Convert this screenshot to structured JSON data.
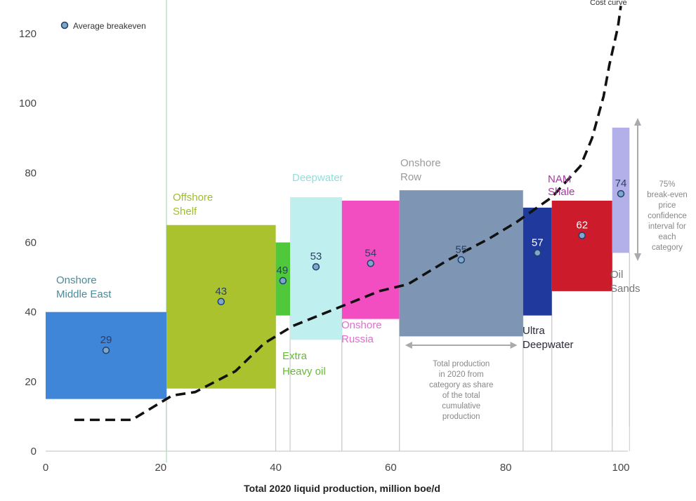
{
  "chart_data": {
    "type": "bar",
    "xlabel": "Total 2020 liquid production, million boe/d",
    "ylabel": "",
    "xlim": [
      0,
      100
    ],
    "ylim": [
      0,
      120
    ],
    "x_ticks": [
      "0",
      "20",
      "40",
      "60",
      "80",
      "100"
    ],
    "y_ticks": [
      "0",
      "20",
      "40",
      "60",
      "80",
      "100",
      "120"
    ],
    "legend": {
      "label": "Average breakeven",
      "position": "top-left"
    },
    "series": [
      {
        "category": "Onshore Middle East",
        "label_lines": [
          "Onshore",
          "Middle East"
        ],
        "x_start": 0,
        "x_end": 21,
        "low": 15,
        "high": 40,
        "average": 29,
        "color": "#3f85d8",
        "label_color": "#4b8a9a"
      },
      {
        "category": "Offshore Shelf",
        "label_lines": [
          "Offshore",
          "Shelf"
        ],
        "x_start": 21,
        "x_end": 40,
        "low": 18,
        "high": 65,
        "average": 43,
        "color": "#a9c22e",
        "label_color": "#9fbf2a"
      },
      {
        "category": "Extra Heavy oil",
        "label_lines": [
          "Extra",
          "Heavy oil"
        ],
        "x_start": 40,
        "x_end": 42.5,
        "low": 39,
        "high": 60,
        "average": 49,
        "color": "#4fc93b",
        "label_color": "#6ab83a"
      },
      {
        "category": "Deepwater",
        "label_lines": [
          "Deepwater"
        ],
        "x_start": 42.5,
        "x_end": 51.5,
        "low": 32,
        "high": 73,
        "average": 53,
        "color": "#bff0ef",
        "label_color": "#8fe0dc"
      },
      {
        "category": "Onshore Russia",
        "label_lines": [
          "Onshore",
          "Russia"
        ],
        "x_start": 51.5,
        "x_end": 61.5,
        "low": 38,
        "high": 72,
        "average": 54,
        "color": "#f24ec2",
        "label_color": "#e36ccf"
      },
      {
        "category": "Onshore Row",
        "label_lines": [
          "Onshore",
          "Row"
        ],
        "x_start": 61.5,
        "x_end": 83,
        "low": 33,
        "high": 75,
        "average": 55,
        "color": "#7e96b4",
        "label_color": "#9a9a9a"
      },
      {
        "category": "Ultra Deepwater",
        "label_lines": [
          "Ultra",
          "Deepwater"
        ],
        "x_start": 83,
        "x_end": 88,
        "low": 39,
        "high": 70,
        "average": 57,
        "color": "#1f3a9c",
        "label_color": "#2a2a3a"
      },
      {
        "category": "NAM Shale",
        "label_lines": [
          "NAM",
          "Shale"
        ],
        "x_start": 88,
        "x_end": 98.5,
        "low": 46,
        "high": 72,
        "average": 62,
        "color": "#cc1c2b",
        "label_color": "#a33a9a"
      },
      {
        "category": "Oil Sands",
        "label_lines": [
          "Oil",
          "Sands"
        ],
        "x_start": 98.5,
        "x_end": 101.5,
        "low": 57,
        "high": 93,
        "average": 74,
        "color": "#b3b0e9",
        "label_color": "#777777"
      }
    ],
    "cost_curve": {
      "label": "Cost curve",
      "points": [
        [
          5,
          9
        ],
        [
          15,
          9
        ],
        [
          18,
          12
        ],
        [
          22,
          16
        ],
        [
          26,
          17
        ],
        [
          33,
          23
        ],
        [
          38,
          31
        ],
        [
          43,
          36
        ],
        [
          52,
          42
        ],
        [
          58,
          46
        ],
        [
          63,
          48
        ],
        [
          70,
          55
        ],
        [
          77,
          61
        ],
        [
          82,
          66
        ],
        [
          88,
          73
        ],
        [
          93,
          82
        ],
        [
          95,
          90
        ],
        [
          97,
          102
        ],
        [
          98,
          111
        ],
        [
          99.5,
          122
        ],
        [
          100,
          128
        ]
      ]
    },
    "annotations": {
      "share_note": [
        "Total production",
        "in 2020 from",
        "category as share",
        "of the total",
        "cumulative",
        "production"
      ],
      "interval_note": [
        "75%",
        "break-even",
        "price",
        "confidence",
        "interval for",
        "each",
        "category"
      ]
    }
  }
}
